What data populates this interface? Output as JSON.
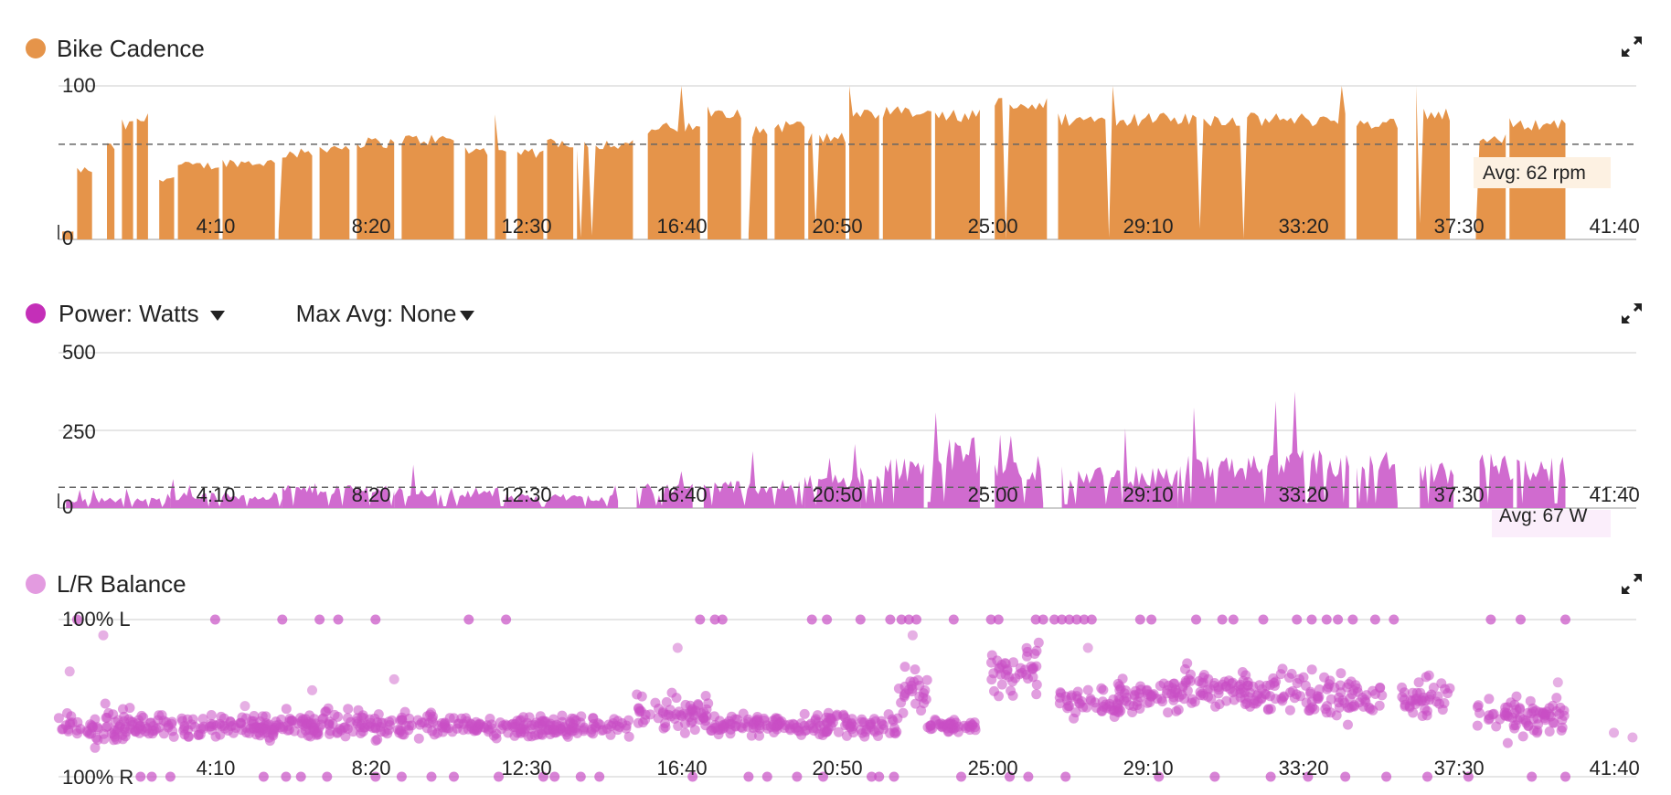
{
  "charts": {
    "cadence": {
      "title": "Bike Cadence",
      "color": "#e5944a",
      "y_ticks": [
        "100",
        "0"
      ],
      "avg_label": "Avg: 62 rpm"
    },
    "power": {
      "title": "Power: Watts",
      "max_avg_label": "Max Avg: None",
      "color": "#c84fc4",
      "y_ticks": [
        "500",
        "250",
        "0"
      ],
      "avg_label": "Avg: 67 W"
    },
    "balance": {
      "title": "L/R Balance",
      "color": "#e39be0",
      "y_ticks": [
        "100% L",
        "100% R"
      ]
    }
  },
  "x_ticks": [
    "4:10",
    "8:20",
    "12:30",
    "16:40",
    "20:50",
    "25:00",
    "29:10",
    "33:20",
    "37:30",
    "41:40"
  ],
  "chart_data": [
    {
      "type": "area",
      "title": "Bike Cadence",
      "ylabel": "rpm",
      "x_unit": "minutes",
      "xlim": [
        0,
        42.3
      ],
      "ylim": [
        0,
        100
      ],
      "average": 62,
      "grid": true,
      "segments": [
        [
          0.1,
          0.4,
          5
        ],
        [
          0.5,
          0.9,
          45
        ],
        [
          1.3,
          1.5,
          60
        ],
        [
          1.7,
          2.0,
          74
        ],
        [
          2.1,
          2.4,
          78
        ],
        [
          2.7,
          3.1,
          40
        ],
        [
          3.2,
          4.3,
          48
        ],
        [
          4.4,
          5.8,
          50
        ],
        [
          5.9,
          6.8,
          56
        ],
        [
          7.0,
          7.8,
          60
        ],
        [
          8.0,
          9.0,
          63
        ],
        [
          9.2,
          10.6,
          65
        ],
        [
          10.9,
          11.5,
          58
        ],
        [
          11.7,
          12.0,
          55
        ],
        [
          12.3,
          13.0,
          56
        ],
        [
          13.1,
          13.8,
          63
        ],
        [
          13.9,
          15.4,
          62
        ],
        [
          15.8,
          17.2,
          72
        ],
        [
          17.4,
          18.3,
          84
        ],
        [
          18.5,
          19.0,
          70
        ],
        [
          19.2,
          20.0,
          74
        ],
        [
          20.1,
          21.1,
          66
        ],
        [
          21.2,
          22.0,
          80
        ],
        [
          22.1,
          23.4,
          82
        ],
        [
          23.5,
          24.7,
          80
        ],
        [
          25.1,
          26.5,
          88
        ],
        [
          26.8,
          34.5,
          78
        ],
        [
          34.8,
          35.9,
          76
        ],
        [
          36.4,
          37.3,
          82
        ],
        [
          38.0,
          38.8,
          65
        ],
        [
          38.9,
          40.4,
          75
        ]
      ]
    },
    {
      "type": "area",
      "title": "Power: Watts",
      "ylabel": "Watts",
      "x_unit": "minutes",
      "xlim": [
        0,
        42.3
      ],
      "ylim": [
        0,
        500
      ],
      "average": 67,
      "grid": true,
      "segments": [
        [
          0.2,
          3.0,
          30
        ],
        [
          3.0,
          6.0,
          45
        ],
        [
          6.0,
          9.0,
          70
        ],
        [
          9.0,
          12.0,
          60
        ],
        [
          12.0,
          15.0,
          40
        ],
        [
          15.5,
          17.0,
          75
        ],
        [
          17.3,
          20.0,
          80
        ],
        [
          20.0,
          21.5,
          100
        ],
        [
          21.5,
          23.2,
          150
        ],
        [
          23.3,
          24.7,
          200
        ],
        [
          25.1,
          26.4,
          150
        ],
        [
          26.9,
          30.0,
          120
        ],
        [
          30.0,
          33.0,
          150
        ],
        [
          33.0,
          34.6,
          165
        ],
        [
          34.8,
          35.9,
          160
        ],
        [
          36.5,
          37.4,
          130
        ],
        [
          38.1,
          39.0,
          160
        ],
        [
          39.1,
          40.4,
          150
        ]
      ]
    },
    {
      "type": "scatter",
      "title": "L/R Balance",
      "x_unit": "minutes",
      "xlim": [
        0,
        42.3
      ],
      "y_unit": "percent left",
      "ylim": [
        0,
        100
      ],
      "grid": true,
      "clusters": [
        [
          0.0,
          2.0,
          32,
          10
        ],
        [
          2.0,
          6.0,
          32,
          6
        ],
        [
          6.0,
          10.0,
          33,
          7
        ],
        [
          10.0,
          15.3,
          32,
          5
        ],
        [
          15.5,
          17.5,
          40,
          9
        ],
        [
          17.5,
          20.0,
          33,
          5
        ],
        [
          20.0,
          22.5,
          33,
          6
        ],
        [
          22.5,
          23.3,
          55,
          15
        ],
        [
          23.3,
          24.6,
          32,
          3
        ],
        [
          25.0,
          26.3,
          68,
          12
        ],
        [
          26.8,
          28.5,
          48,
          8
        ],
        [
          28.5,
          30.0,
          52,
          8
        ],
        [
          30.0,
          31.5,
          58,
          10
        ],
        [
          31.5,
          33.5,
          55,
          10
        ],
        [
          33.5,
          35.5,
          50,
          12
        ],
        [
          36.0,
          37.3,
          50,
          10
        ],
        [
          38.0,
          40.4,
          38,
          10
        ]
      ],
      "rail_points_left": [
        0.5,
        4.2,
        6.0,
        7.0,
        7.5,
        8.5,
        11.0,
        12.0,
        17.2,
        17.6,
        17.8,
        20.2,
        20.6,
        21.5,
        22.3,
        22.6,
        22.8,
        23.0,
        24.0,
        25.0,
        25.2,
        26.2,
        26.4,
        26.7,
        26.9,
        27.1,
        27.3,
        27.5,
        27.7,
        29.0,
        29.3,
        30.5,
        31.2,
        31.5,
        32.3,
        33.2,
        33.6,
        34.0,
        34.3,
        34.7,
        35.3,
        35.8,
        38.4,
        39.2,
        40.4
      ],
      "rail_points_right": [
        2.2,
        2.5,
        3.0,
        5.5,
        6.1,
        6.5,
        7.2,
        8.5,
        9.2,
        10.0,
        10.6,
        11.8,
        13.0,
        13.3,
        14.0,
        14.5,
        17.0,
        18.5,
        19.0,
        19.8,
        20.5,
        21.8,
        22.0,
        22.4,
        24.2,
        25.5,
        26.0,
        27.0,
        29.5,
        31.0,
        32.5,
        33.5,
        34.5,
        35.6,
        36.7,
        37.8,
        39.5,
        40.4
      ]
    }
  ]
}
